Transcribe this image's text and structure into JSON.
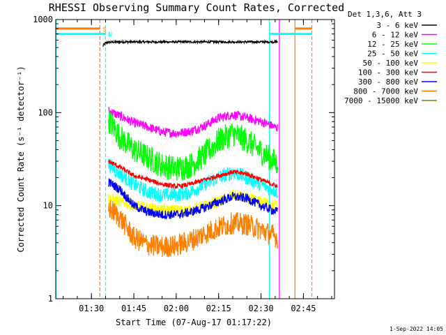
{
  "chart_data": {
    "type": "line",
    "title": "RHESSI Observing Summary Count Rates, Corrected",
    "ylabel": "Corrected Count Rate (s⁻¹ detector⁻¹)",
    "xlabel": "Start Time (07-Aug-17 01:17:22)",
    "y_scale": "log",
    "ylim": [
      1,
      1000
    ],
    "y_ticks": [
      "1",
      "10",
      "100",
      "1000"
    ],
    "xlim": [
      "01:17:22",
      "02:56:00"
    ],
    "x_ticks": [
      "01:30",
      "01:45",
      "02:00",
      "02:15",
      "02:30",
      "02:45"
    ],
    "grid": false,
    "legend_position": "right",
    "legend_title": "Det 1,3,6, Att 3",
    "series": [
      {
        "name": "3 - 6 keV",
        "color": "#000000",
        "x": [
          "01:34",
          "01:35",
          "01:36",
          "01:40",
          "01:50",
          "02:00",
          "02:10",
          "02:20",
          "02:30",
          "02:35",
          "02:36"
        ],
        "y": [
          520,
          560,
          570,
          575,
          575,
          575,
          575,
          575,
          575,
          575,
          575
        ]
      },
      {
        "name": "6 - 12 keV",
        "color": "#ff00ff",
        "x": [
          "01:36",
          "01:40",
          "01:45",
          "01:50",
          "01:55",
          "02:00",
          "02:05",
          "02:10",
          "02:15",
          "02:20",
          "02:25",
          "02:30",
          "02:36"
        ],
        "y": [
          105,
          92,
          78,
          70,
          62,
          60,
          63,
          72,
          88,
          95,
          88,
          80,
          68
        ]
      },
      {
        "name": "12 - 25 keV",
        "color": "#00ff00",
        "x": [
          "01:36",
          "01:40",
          "01:45",
          "01:50",
          "01:55",
          "02:00",
          "02:05",
          "02:10",
          "02:15",
          "02:20",
          "02:25",
          "02:30",
          "02:36"
        ],
        "y": [
          85,
          55,
          40,
          33,
          27,
          25,
          27,
          35,
          50,
          60,
          50,
          38,
          28
        ]
      },
      {
        "name": "25 - 50 keV",
        "color": "#00ffff",
        "x": [
          "01:36",
          "01:40",
          "01:45",
          "01:50",
          "01:55",
          "02:00",
          "02:05",
          "02:10",
          "02:15",
          "02:20",
          "02:25",
          "02:30",
          "02:36"
        ],
        "y": [
          28,
          22,
          17,
          14,
          13,
          13,
          14,
          17,
          20,
          23,
          20,
          17,
          14
        ]
      },
      {
        "name": "50 - 100 keV",
        "color": "#ffff00",
        "x": [
          "01:36",
          "01:45",
          "01:55",
          "02:05",
          "02:15",
          "02:20",
          "02:25",
          "02:30",
          "02:36"
        ],
        "y": [
          12,
          10,
          9,
          9,
          11,
          13,
          12,
          11,
          10
        ]
      },
      {
        "name": "100 - 300 keV",
        "color": "#ff0000",
        "x": [
          "01:36",
          "01:40",
          "01:45",
          "01:50",
          "01:55",
          "02:00",
          "02:05",
          "02:10",
          "02:15",
          "02:20",
          "02:25",
          "02:30",
          "02:36"
        ],
        "y": [
          30,
          26,
          21,
          19,
          17,
          16,
          17,
          19,
          21,
          23,
          22,
          19,
          16
        ]
      },
      {
        "name": "300 - 800 keV",
        "color": "#0000ff",
        "x": [
          "01:36",
          "01:40",
          "01:45",
          "01:50",
          "01:55",
          "02:00",
          "02:05",
          "02:10",
          "02:15",
          "02:20",
          "02:25",
          "02:30",
          "02:36"
        ],
        "y": [
          18,
          15,
          10,
          8.5,
          8,
          8,
          8.5,
          9.5,
          11,
          12.5,
          12,
          10,
          8.5
        ]
      },
      {
        "name": "800 - 7000 keV",
        "color": "#ff8000",
        "x": [
          "01:36",
          "01:40",
          "01:45",
          "01:50",
          "01:55",
          "02:00",
          "02:05",
          "02:10",
          "02:15",
          "02:20",
          "02:25",
          "02:30",
          "02:36"
        ],
        "y": [
          9.5,
          7.5,
          4.5,
          3.8,
          3.6,
          3.7,
          4.2,
          5.0,
          5.8,
          6.5,
          6.3,
          5.5,
          4.5
        ]
      },
      {
        "name": "7000 - 15000 keV",
        "color": "#808000",
        "x": [],
        "y": []
      }
    ],
    "vertical_markers": [
      {
        "time": "01:17:30",
        "color": "#00ffff",
        "style": "solid"
      },
      {
        "time": "01:33:00",
        "color": "#ff8000",
        "style": "dashed"
      },
      {
        "time": "01:35:00",
        "color": "#00ffff",
        "style": "dashed"
      },
      {
        "time": "02:33:00",
        "color": "#00ffff",
        "style": "solid"
      },
      {
        "time": "02:36:30",
        "color": "#ff00ff",
        "style": "solid"
      },
      {
        "time": "02:42:00",
        "color": "#ff8000",
        "style": "solid"
      },
      {
        "time": "02:48:00",
        "color": "#ff8000",
        "style": "dashed"
      }
    ],
    "horizontal_bars": [
      {
        "label": "S",
        "color": "#ff8000",
        "level": 800,
        "from": "01:17:22",
        "to": "01:33:00"
      },
      {
        "label": "",
        "color": "#ff8000",
        "level": 800,
        "from": "02:42:00",
        "to": "02:48:00"
      },
      {
        "label": "N",
        "color": "#00ffff",
        "level": 700,
        "from": "01:17:22",
        "to": "01:35:00"
      },
      {
        "label": "",
        "color": "#00ffff",
        "level": 700,
        "from": "02:33:00",
        "to": "02:48:00"
      }
    ]
  },
  "footer": {
    "timestamp": "1-Sep-2022 14:05"
  }
}
